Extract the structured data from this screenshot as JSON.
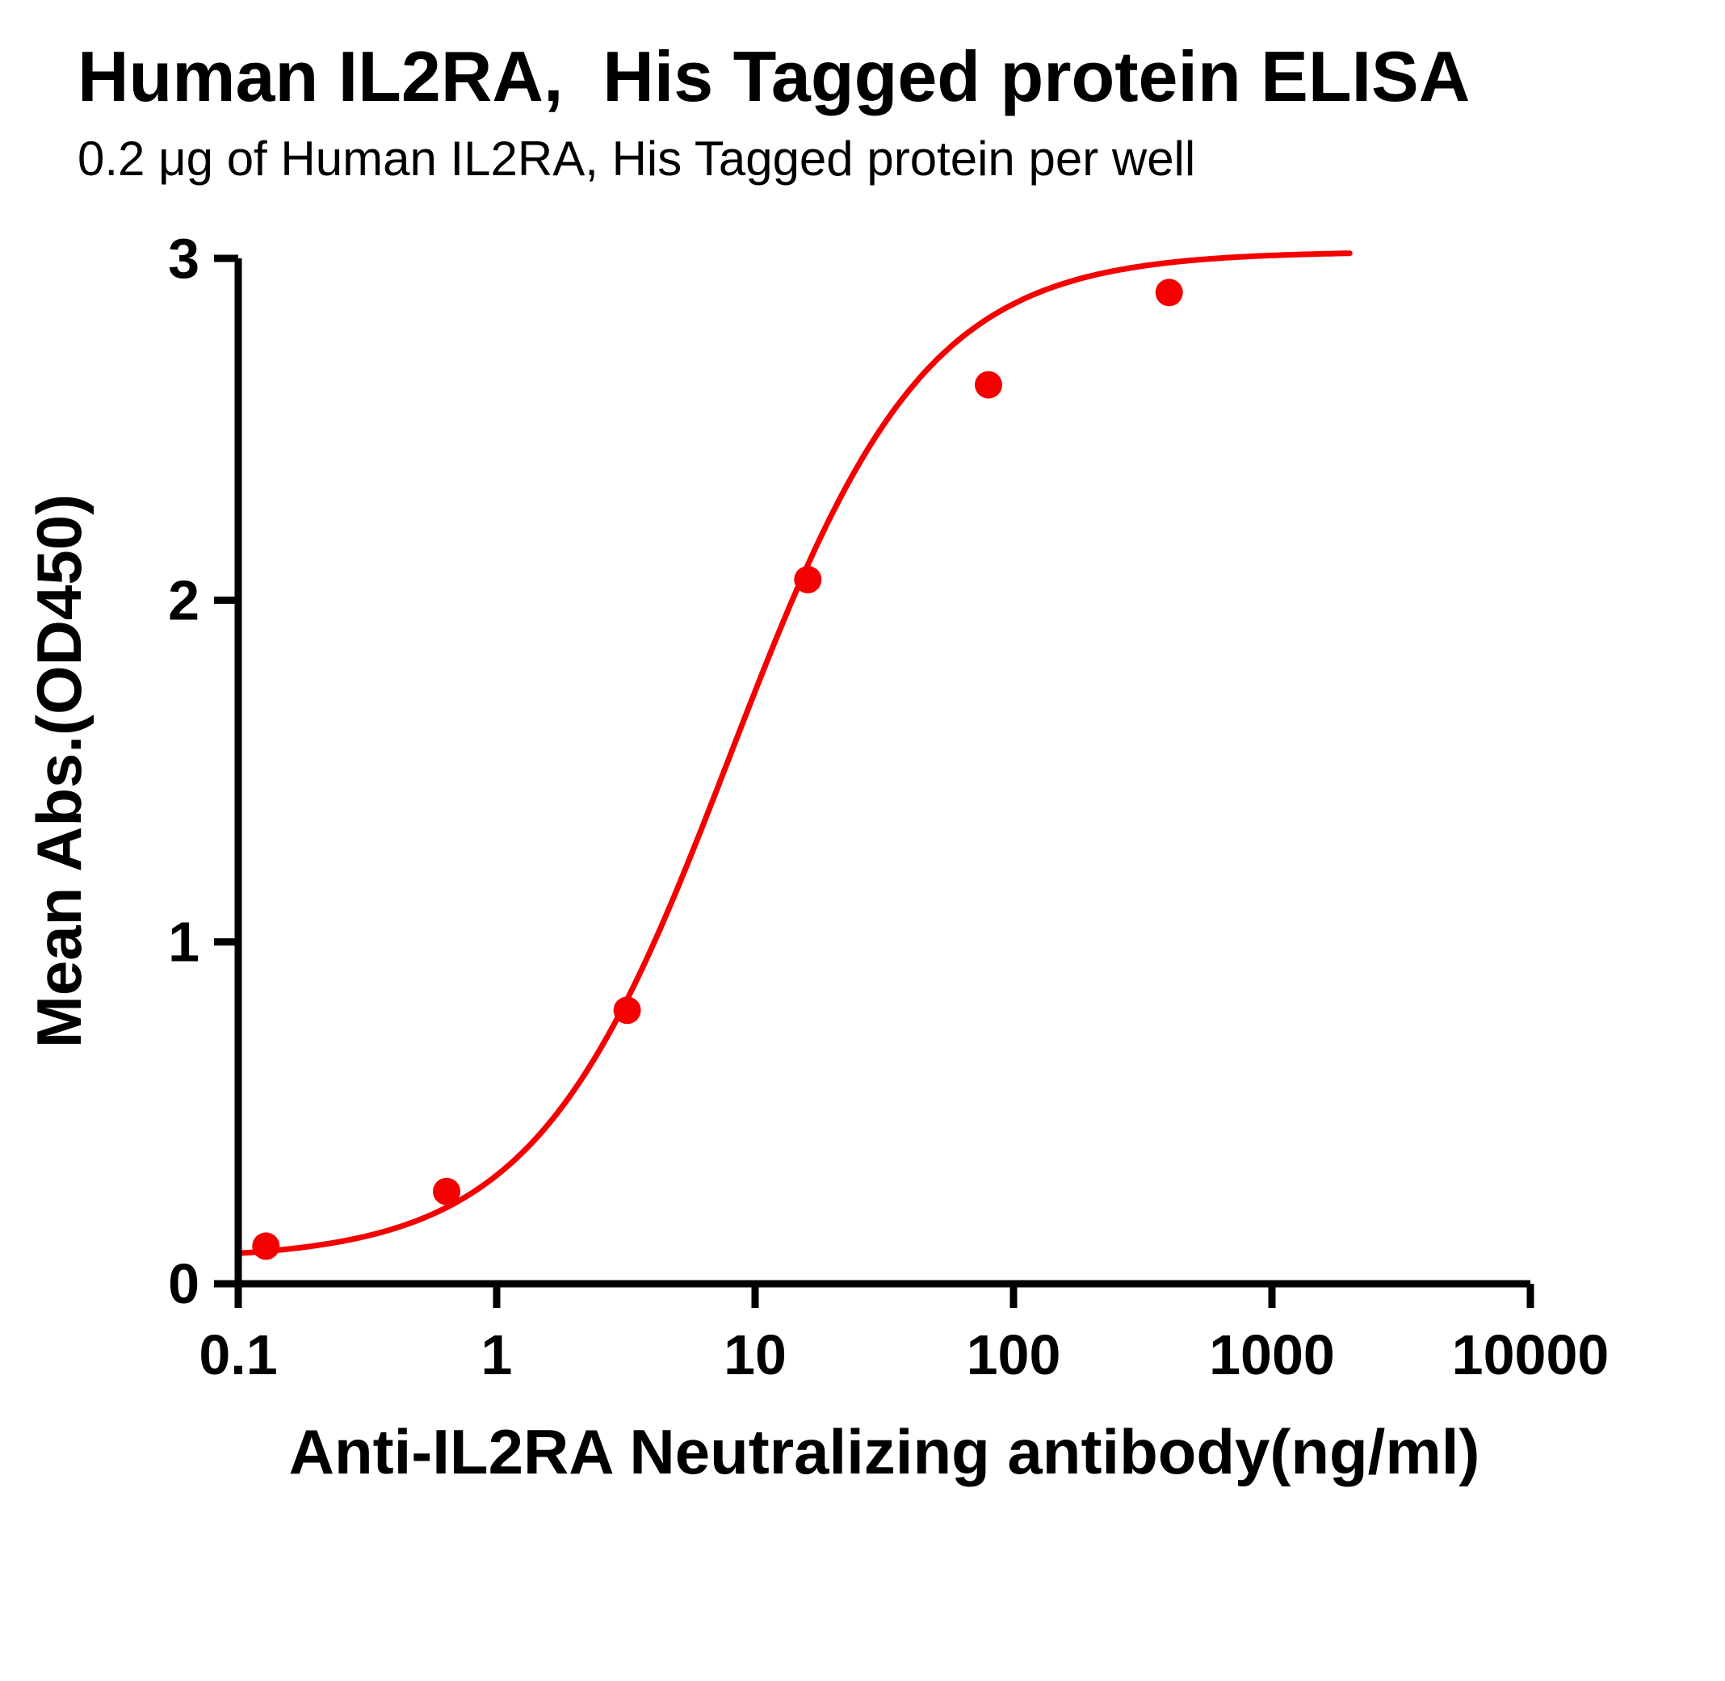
{
  "chart_data": {
    "type": "scatter",
    "title": "Human IL2RA,  His Tagged protein ELISA",
    "subtitle": "0.2 μg of Human IL2RA, His Tagged protein per well",
    "xlabel": "Anti-IL2RA Neutralizing antibody(ng/ml)",
    "ylabel": "Mean Abs.(OD450)",
    "x_scale": "log10",
    "xlim": [
      0.1,
      10000
    ],
    "ylim": [
      0,
      3
    ],
    "x_ticks": [
      0.1,
      1,
      10,
      100,
      1000,
      10000
    ],
    "x_tick_labels": [
      "0.1",
      "1",
      "10",
      "100",
      "1000",
      "10000"
    ],
    "y_ticks": [
      0,
      1,
      2,
      3
    ],
    "y_tick_labels": [
      "0",
      "1",
      "2",
      "3"
    ],
    "points": {
      "x": [
        0.128,
        0.64,
        3.2,
        16,
        80,
        400
      ],
      "y": [
        0.11,
        0.27,
        0.8,
        2.06,
        2.63,
        2.9
      ]
    },
    "fit": {
      "model": "4PL",
      "bottom": 0.07,
      "top": 3.02,
      "ec50": 8,
      "hill": 1.15,
      "x_range": [
        0.1,
        2000
      ]
    },
    "color": "#F50000",
    "axis_color": "#000000",
    "grid": false,
    "legend": false
  }
}
